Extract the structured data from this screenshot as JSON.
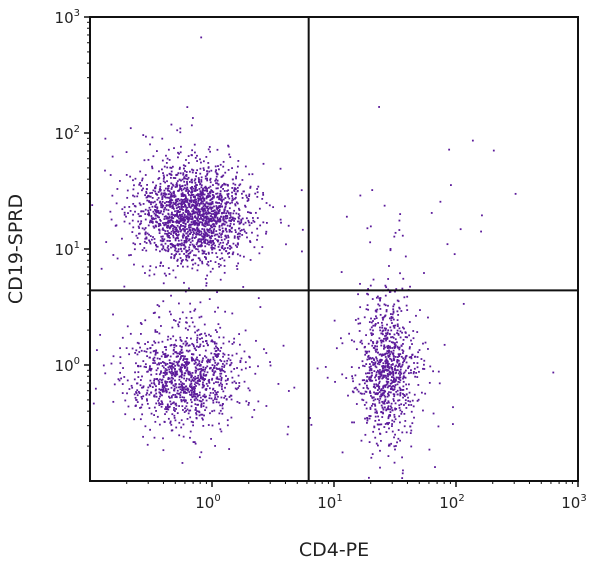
{
  "chart_data": {
    "type": "scatter",
    "title": "",
    "xlabel": "CD4-PE",
    "ylabel": "CD19-SPRD",
    "xscale": "log",
    "yscale": "log",
    "xlim": [
      0.1,
      1000
    ],
    "ylim": [
      0.1,
      1000
    ],
    "x_ticks": [
      {
        "base": "10",
        "exp": "0",
        "value": 1
      },
      {
        "base": "10",
        "exp": "1",
        "value": 10
      },
      {
        "base": "10",
        "exp": "2",
        "value": 100
      },
      {
        "base": "10",
        "exp": "3",
        "value": 1000
      }
    ],
    "y_ticks": [
      {
        "base": "10",
        "exp": "0",
        "value": 1
      },
      {
        "base": "10",
        "exp": "1",
        "value": 10
      },
      {
        "base": "10",
        "exp": "2",
        "value": 100
      },
      {
        "base": "10",
        "exp": "3",
        "value": 1000
      }
    ],
    "grid": false,
    "point_color": "#5b1a9a",
    "quadrant_gates": {
      "x": 6.2,
      "y": 4.4
    },
    "populations": [
      {
        "quadrant": "upper-left",
        "center": [
          0.7,
          20
        ],
        "spread_decades": [
          0.22,
          0.2
        ],
        "count": 1900
      },
      {
        "quadrant": "lower-left",
        "center": [
          0.6,
          0.8
        ],
        "spread_decades": [
          0.22,
          0.2
        ],
        "count": 1100
      },
      {
        "quadrant": "lower-right",
        "center": [
          27,
          0.9
        ],
        "spread_decades": [
          0.12,
          0.3
        ],
        "count": 900
      },
      {
        "quadrant": "upper-right",
        "center": [
          60,
          15
        ],
        "spread_decades": [
          0.6,
          0.3
        ],
        "count": 30
      }
    ]
  }
}
